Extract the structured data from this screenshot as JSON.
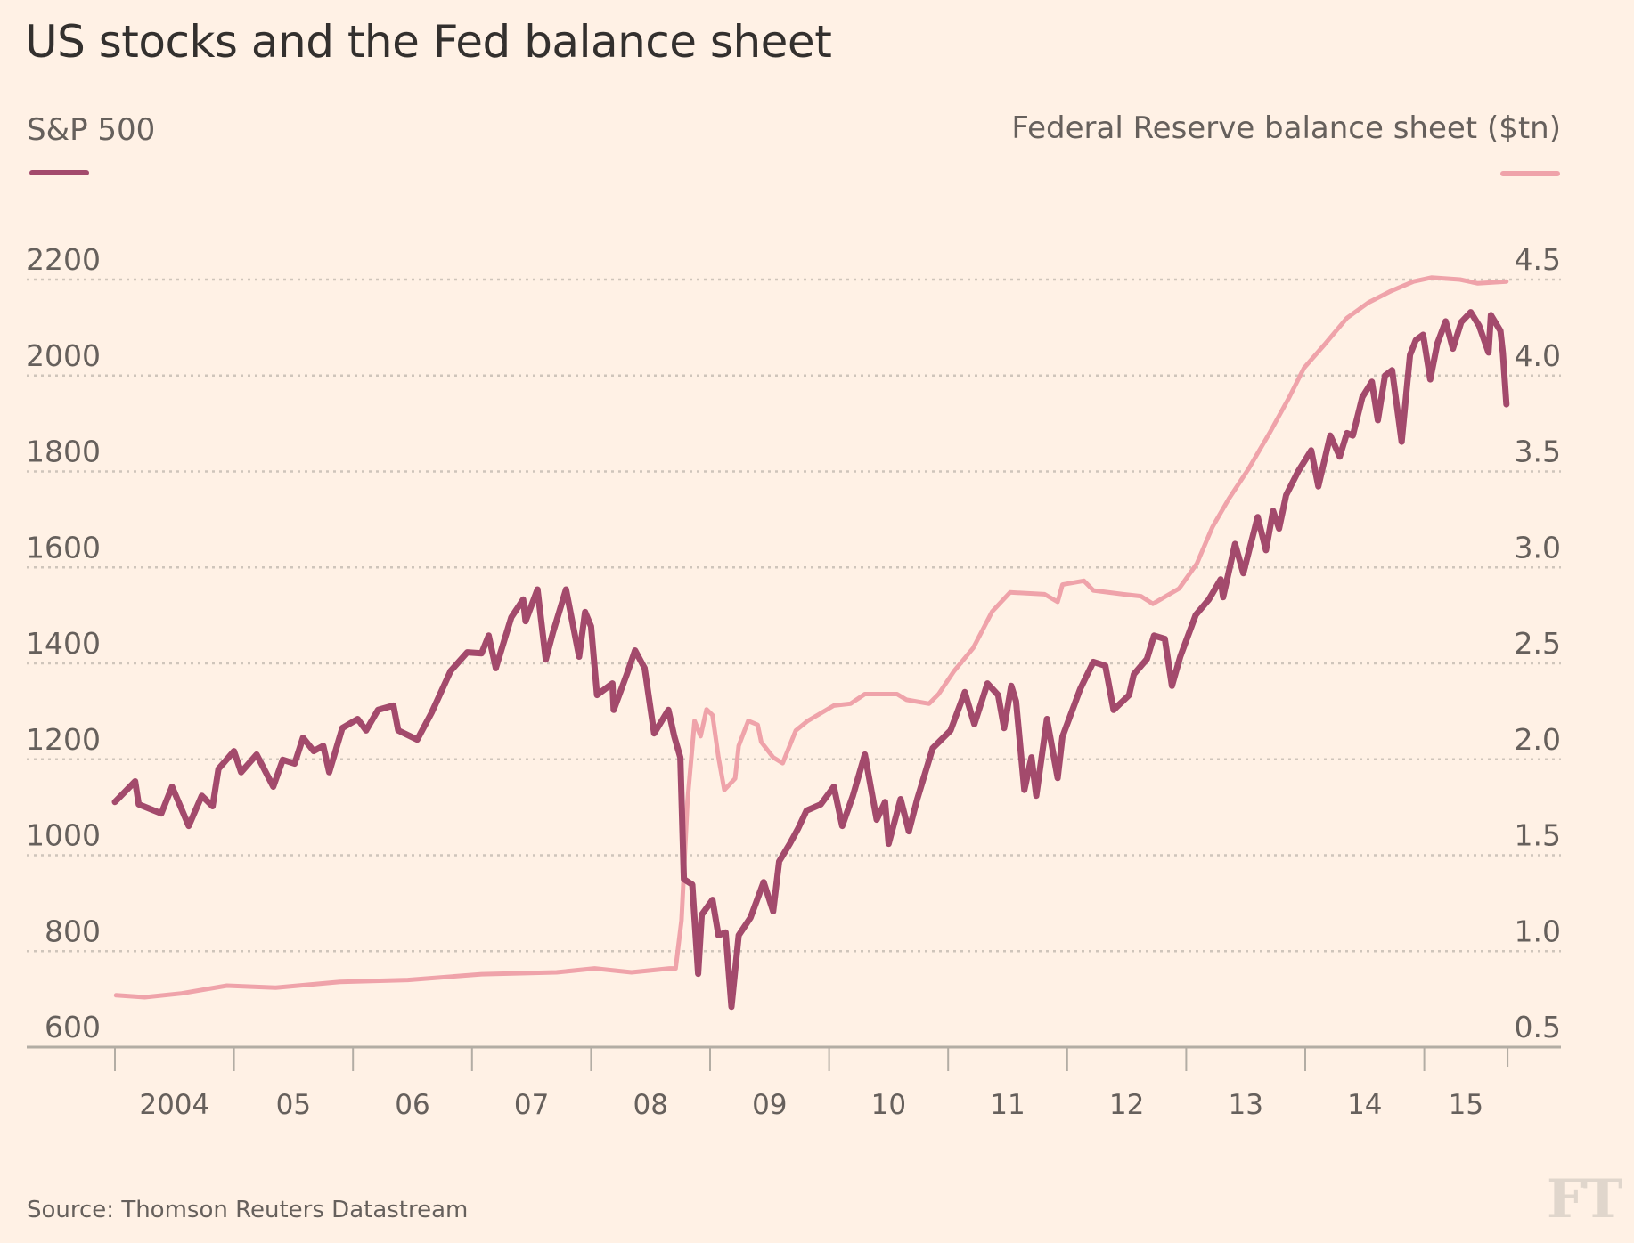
{
  "title": "US stocks and the Fed balance sheet",
  "legend": {
    "left_label": "S&P 500",
    "right_label": "Federal Reserve balance sheet ($tn)"
  },
  "source": "Source: Thomson Reuters Datastream",
  "logo": "FT",
  "colors": {
    "background": "#fff1e5",
    "sp500": "#a34a6c",
    "fed": "#efa3aa",
    "text": "#66605c",
    "title": "#33302e",
    "grid": "#cfc5bb",
    "axis": "#b3ada4"
  },
  "chart_data": {
    "type": "line",
    "title": "US stocks and the Fed balance sheet",
    "xlabel": "",
    "ylabel_left": "S&P 500",
    "ylabel_right": "Federal Reserve balance sheet ($tn)",
    "x_range": [
      2004.0,
      2015.7
    ],
    "x_ticks": [
      2004,
      2005,
      2006,
      2007,
      2008,
      2009,
      2010,
      2011,
      2012,
      2013,
      2014,
      2015
    ],
    "x_tick_labels": [
      "2004",
      "05",
      "06",
      "07",
      "08",
      "09",
      "10",
      "11",
      "12",
      "13",
      "14",
      "15"
    ],
    "ylim_left": [
      600,
      2200
    ],
    "y_ticks_left": [
      600,
      800,
      1000,
      1200,
      1400,
      1600,
      1800,
      2000,
      2200
    ],
    "ylim_right": [
      0.5,
      4.5
    ],
    "y_ticks_right": [
      "0.5",
      "1.0",
      "1.5",
      "2.0",
      "2.5",
      "3.0",
      "3.5",
      "4.0",
      "4.5"
    ],
    "grid": true,
    "legend_placement": "top",
    "series": [
      {
        "name": "S&P 500",
        "axis": "left",
        "points": [
          [
            2004.0,
            1111
          ],
          [
            2004.17,
            1154
          ],
          [
            2004.2,
            1106
          ],
          [
            2004.39,
            1087
          ],
          [
            2004.48,
            1143
          ],
          [
            2004.62,
            1061
          ],
          [
            2004.73,
            1124
          ],
          [
            2004.82,
            1102
          ],
          [
            2004.87,
            1180
          ],
          [
            2005.0,
            1217
          ],
          [
            2005.06,
            1173
          ],
          [
            2005.19,
            1210
          ],
          [
            2005.33,
            1143
          ],
          [
            2005.41,
            1199
          ],
          [
            2005.51,
            1191
          ],
          [
            2005.58,
            1245
          ],
          [
            2005.67,
            1217
          ],
          [
            2005.75,
            1228
          ],
          [
            2005.8,
            1173
          ],
          [
            2005.91,
            1265
          ],
          [
            2006.04,
            1284
          ],
          [
            2006.11,
            1260
          ],
          [
            2006.21,
            1303
          ],
          [
            2006.34,
            1312
          ],
          [
            2006.38,
            1260
          ],
          [
            2006.54,
            1241
          ],
          [
            2006.66,
            1297
          ],
          [
            2006.82,
            1384
          ],
          [
            2006.96,
            1423
          ],
          [
            2007.08,
            1421
          ],
          [
            2007.14,
            1458
          ],
          [
            2007.2,
            1390
          ],
          [
            2007.33,
            1496
          ],
          [
            2007.43,
            1533
          ],
          [
            2007.45,
            1488
          ],
          [
            2007.55,
            1554
          ],
          [
            2007.62,
            1408
          ],
          [
            2007.68,
            1464
          ],
          [
            2007.79,
            1554
          ],
          [
            2007.9,
            1414
          ],
          [
            2007.95,
            1507
          ],
          [
            2008.0,
            1477
          ],
          [
            2008.05,
            1334
          ],
          [
            2008.18,
            1358
          ],
          [
            2008.19,
            1303
          ],
          [
            2008.3,
            1377
          ],
          [
            2008.37,
            1427
          ],
          [
            2008.45,
            1390
          ],
          [
            2008.53,
            1254
          ],
          [
            2008.65,
            1303
          ],
          [
            2008.7,
            1247
          ],
          [
            2008.75,
            1204
          ],
          [
            2008.78,
            950
          ],
          [
            2008.85,
            939
          ],
          [
            2008.9,
            753
          ],
          [
            2008.93,
            876
          ],
          [
            2009.02,
            907
          ],
          [
            2009.07,
            833
          ],
          [
            2009.13,
            839
          ],
          [
            2009.18,
            684
          ],
          [
            2009.24,
            833
          ],
          [
            2009.34,
            870
          ],
          [
            2009.45,
            944
          ],
          [
            2009.53,
            883
          ],
          [
            2009.58,
            987
          ],
          [
            2009.67,
            1024
          ],
          [
            2009.74,
            1056
          ],
          [
            2009.81,
            1093
          ],
          [
            2009.93,
            1106
          ],
          [
            2010.04,
            1143
          ],
          [
            2010.11,
            1061
          ],
          [
            2010.2,
            1124
          ],
          [
            2010.3,
            1210
          ],
          [
            2010.4,
            1074
          ],
          [
            2010.47,
            1111
          ],
          [
            2010.5,
            1024
          ],
          [
            2010.6,
            1117
          ],
          [
            2010.67,
            1050
          ],
          [
            2010.74,
            1117
          ],
          [
            2010.87,
            1223
          ],
          [
            2011.02,
            1260
          ],
          [
            2011.14,
            1340
          ],
          [
            2011.22,
            1273
          ],
          [
            2011.33,
            1358
          ],
          [
            2011.42,
            1334
          ],
          [
            2011.47,
            1265
          ],
          [
            2011.53,
            1353
          ],
          [
            2011.57,
            1321
          ],
          [
            2011.64,
            1136
          ],
          [
            2011.7,
            1204
          ],
          [
            2011.74,
            1124
          ],
          [
            2011.83,
            1284
          ],
          [
            2011.92,
            1161
          ],
          [
            2011.96,
            1247
          ],
          [
            2012.11,
            1347
          ],
          [
            2012.22,
            1403
          ],
          [
            2012.32,
            1395
          ],
          [
            2012.39,
            1303
          ],
          [
            2012.52,
            1334
          ],
          [
            2012.56,
            1377
          ],
          [
            2012.67,
            1409
          ],
          [
            2012.73,
            1458
          ],
          [
            2012.82,
            1451
          ],
          [
            2012.88,
            1353
          ],
          [
            2012.95,
            1414
          ],
          [
            2013.08,
            1501
          ],
          [
            2013.19,
            1533
          ],
          [
            2013.29,
            1575
          ],
          [
            2013.31,
            1538
          ],
          [
            2013.41,
            1649
          ],
          [
            2013.48,
            1588
          ],
          [
            2013.6,
            1705
          ],
          [
            2013.67,
            1636
          ],
          [
            2013.73,
            1718
          ],
          [
            2013.78,
            1681
          ],
          [
            2013.84,
            1751
          ],
          [
            2013.94,
            1800
          ],
          [
            2014.05,
            1844
          ],
          [
            2014.11,
            1769
          ],
          [
            2014.21,
            1875
          ],
          [
            2014.29,
            1831
          ],
          [
            2014.35,
            1880
          ],
          [
            2014.4,
            1875
          ],
          [
            2014.48,
            1955
          ],
          [
            2014.56,
            1987
          ],
          [
            2014.61,
            1907
          ],
          [
            2014.67,
            2000
          ],
          [
            2014.73,
            2011
          ],
          [
            2014.81,
            1862
          ],
          [
            2014.88,
            2043
          ],
          [
            2014.93,
            2074
          ],
          [
            2014.99,
            2085
          ],
          [
            2015.05,
            1992
          ],
          [
            2015.11,
            2067
          ],
          [
            2015.18,
            2113
          ],
          [
            2015.24,
            2056
          ],
          [
            2015.31,
            2111
          ],
          [
            2015.39,
            2132
          ],
          [
            2015.46,
            2104
          ],
          [
            2015.54,
            2048
          ],
          [
            2015.56,
            2126
          ],
          [
            2015.64,
            2093
          ],
          [
            2015.66,
            2048
          ],
          [
            2015.69,
            1940
          ]
        ]
      },
      {
        "name": "Federal Reserve balance sheet ($tn)",
        "axis": "right",
        "points": [
          [
            2004.01,
            0.77
          ],
          [
            2004.25,
            0.76
          ],
          [
            2004.56,
            0.78
          ],
          [
            2004.94,
            0.82
          ],
          [
            2005.35,
            0.81
          ],
          [
            2005.89,
            0.84
          ],
          [
            2006.46,
            0.85
          ],
          [
            2007.08,
            0.88
          ],
          [
            2007.71,
            0.89
          ],
          [
            2008.03,
            0.91
          ],
          [
            2008.34,
            0.89
          ],
          [
            2008.66,
            0.91
          ],
          [
            2008.71,
            0.91
          ],
          [
            2008.76,
            1.16
          ],
          [
            2008.81,
            1.78
          ],
          [
            2008.87,
            2.2
          ],
          [
            2008.92,
            2.12
          ],
          [
            2008.97,
            2.26
          ],
          [
            2009.02,
            2.23
          ],
          [
            2009.07,
            2.01
          ],
          [
            2009.12,
            1.84
          ],
          [
            2009.21,
            1.9
          ],
          [
            2009.24,
            2.07
          ],
          [
            2009.32,
            2.2
          ],
          [
            2009.4,
            2.18
          ],
          [
            2009.43,
            2.09
          ],
          [
            2009.53,
            2.01
          ],
          [
            2009.61,
            1.98
          ],
          [
            2009.72,
            2.15
          ],
          [
            2009.82,
            2.2
          ],
          [
            2010.04,
            2.28
          ],
          [
            2010.18,
            2.29
          ],
          [
            2010.3,
            2.34
          ],
          [
            2010.57,
            2.34
          ],
          [
            2010.65,
            2.31
          ],
          [
            2010.84,
            2.29
          ],
          [
            2010.92,
            2.34
          ],
          [
            2011.05,
            2.46
          ],
          [
            2011.21,
            2.58
          ],
          [
            2011.37,
            2.77
          ],
          [
            2011.52,
            2.87
          ],
          [
            2011.81,
            2.86
          ],
          [
            2011.92,
            2.82
          ],
          [
            2011.96,
            2.91
          ],
          [
            2012.14,
            2.93
          ],
          [
            2012.22,
            2.88
          ],
          [
            2012.47,
            2.86
          ],
          [
            2012.62,
            2.85
          ],
          [
            2012.72,
            2.81
          ],
          [
            2012.94,
            2.89
          ],
          [
            2013.09,
            3.02
          ],
          [
            2013.22,
            3.21
          ],
          [
            2013.36,
            3.36
          ],
          [
            2013.52,
            3.51
          ],
          [
            2013.7,
            3.7
          ],
          [
            2013.86,
            3.88
          ],
          [
            2013.99,
            4.04
          ],
          [
            2014.16,
            4.16
          ],
          [
            2014.35,
            4.3
          ],
          [
            2014.53,
            4.38
          ],
          [
            2014.72,
            4.44
          ],
          [
            2014.91,
            4.49
          ],
          [
            2015.06,
            4.51
          ],
          [
            2015.3,
            4.5
          ],
          [
            2015.45,
            4.48
          ],
          [
            2015.69,
            4.49
          ]
        ]
      }
    ]
  }
}
